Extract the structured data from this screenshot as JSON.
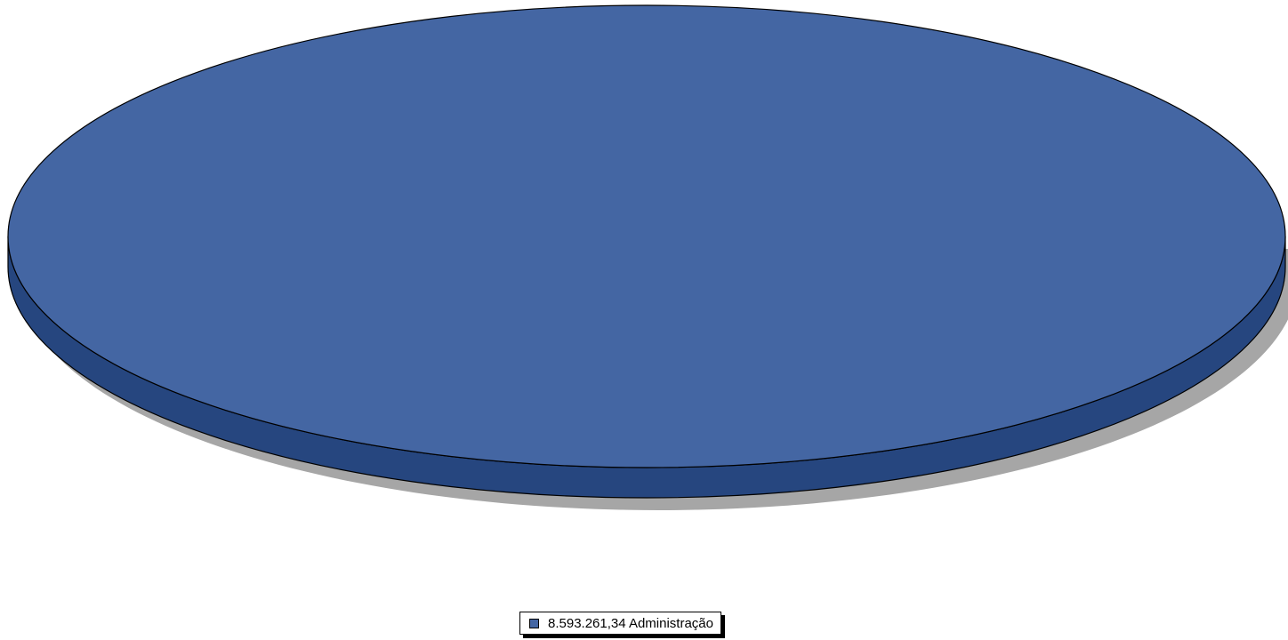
{
  "chart_data": {
    "type": "pie",
    "title": "",
    "slices": [
      {
        "label": "Administração",
        "value_label": "8.593.261,34",
        "value": 8593261.34,
        "color": "#4466a3",
        "side_color": "#26467f"
      }
    ],
    "legend": {
      "position": "bottom-center"
    }
  }
}
